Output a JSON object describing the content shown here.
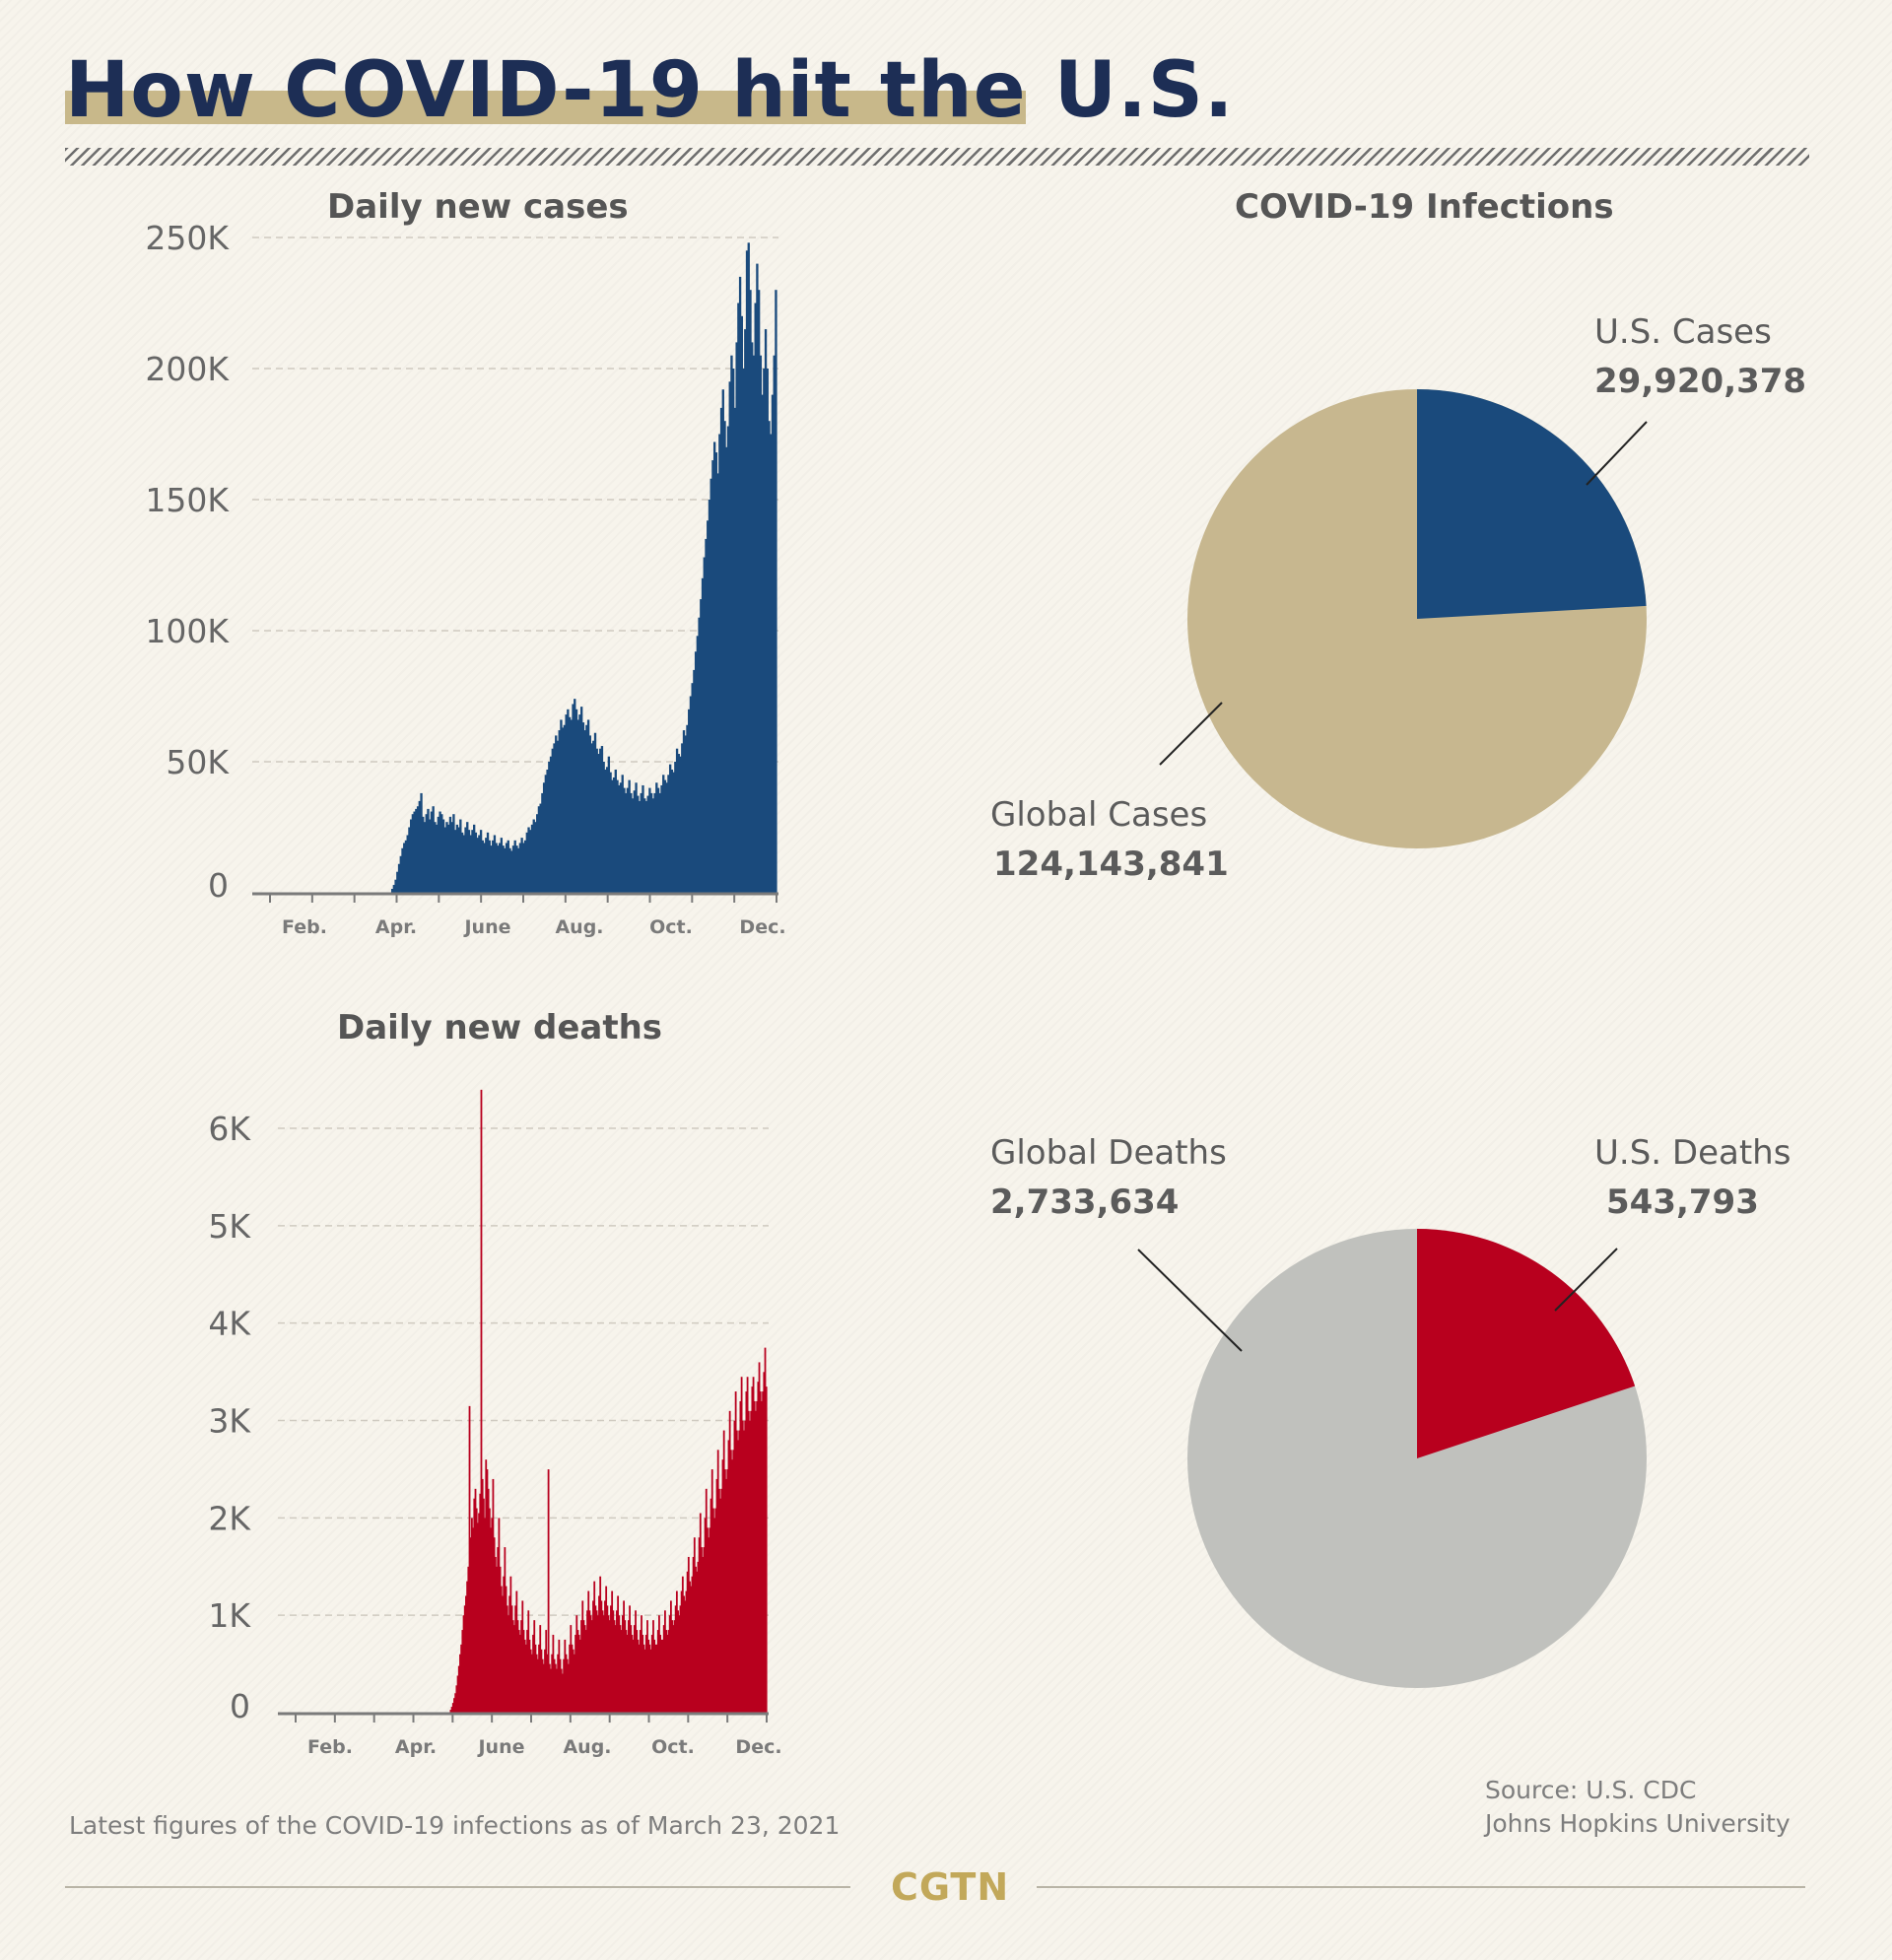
{
  "title": "How COVID-19 hit the U.S.",
  "colors": {
    "title": "#1d2e55",
    "title_band": "#c8b88a",
    "cases_bar": "#1a4a7c",
    "deaths_bar": "#b8001e",
    "global_cases": "#c7b78f",
    "us_cases": "#1a4a7c",
    "global_deaths": "#c0c1bd",
    "us_deaths": "#b8001e",
    "brand": "#c2a85a"
  },
  "chart_data": [
    {
      "type": "bar",
      "title": "Daily new cases",
      "ylim": [
        0,
        250000
      ],
      "y_ticks": [
        "250K",
        "200K",
        "150K",
        "100K",
        "50K",
        "0"
      ],
      "x_ticks": [
        "Feb.",
        "Apr.",
        "June",
        "Aug.",
        "Oct.",
        "Dec."
      ],
      "grid": true,
      "series": [
        {
          "values": [
            0,
            0,
            0,
            0,
            0,
            0,
            0,
            0,
            0,
            0,
            0,
            0,
            0,
            0,
            0,
            0,
            0,
            0,
            0,
            0,
            0,
            0,
            0,
            0,
            0,
            0,
            0,
            0,
            0,
            0,
            0,
            0,
            0,
            0,
            0,
            0,
            0,
            0,
            0,
            0,
            0,
            0,
            0,
            0,
            0,
            0,
            0,
            0,
            0,
            0,
            0,
            0,
            0,
            0,
            0,
            0,
            0,
            0,
            0,
            0,
            0,
            0,
            0,
            0,
            0,
            0,
            0,
            0,
            0,
            0,
            0,
            0,
            0,
            0,
            0,
            0,
            0,
            0,
            1500,
            3000,
            5000,
            8000,
            11000,
            14000,
            17000,
            19000,
            20000,
            22000,
            25000,
            28000,
            30000,
            31000,
            32000,
            33000,
            35000,
            38000,
            29000,
            27000,
            30000,
            32000,
            28000,
            31000,
            33000,
            27000,
            26000,
            29000,
            31000,
            30000,
            28000,
            25000,
            27000,
            26000,
            29000,
            27000,
            30000,
            24000,
            26000,
            25000,
            28000,
            23000,
            22000,
            25000,
            27000,
            24000,
            22000,
            24000,
            26000,
            23000,
            21000,
            22000,
            24000,
            20000,
            19000,
            21000,
            23000,
            20000,
            18000,
            20000,
            22000,
            19000,
            18000,
            19000,
            21000,
            18000,
            17000,
            19000,
            20000,
            17000,
            16000,
            18000,
            20000,
            18000,
            17000,
            19000,
            21000,
            19000,
            20000,
            23000,
            25000,
            24000,
            26000,
            28000,
            27000,
            30000,
            33000,
            34000,
            38000,
            42000,
            45000,
            47000,
            50000,
            52000,
            55000,
            57000,
            60000,
            58000,
            62000,
            66000,
            63000,
            64000,
            68000,
            70000,
            67000,
            66000,
            72000,
            74000,
            70000,
            66000,
            68000,
            71000,
            65000,
            62000,
            64000,
            66000,
            60000,
            57000,
            58000,
            61000,
            55000,
            53000,
            55000,
            56000,
            50000,
            47000,
            48000,
            52000,
            46000,
            43000,
            44000,
            47000,
            43000,
            41000,
            42000,
            45000,
            40000,
            38000,
            40000,
            43000,
            38000,
            36000,
            39000,
            42000,
            37000,
            35000,
            38000,
            41000,
            36000,
            35000,
            37000,
            40000,
            38000,
            36000,
            38000,
            42000,
            40000,
            38000,
            41000,
            45000,
            43000,
            42000,
            45000,
            49000,
            47000,
            46000,
            50000,
            55000,
            53000,
            52000,
            57000,
            62000,
            60000,
            64000,
            70000,
            75000,
            80000,
            85000,
            92000,
            98000,
            105000,
            112000,
            120000,
            128000,
            135000,
            142000,
            150000,
            158000,
            165000,
            172000,
            168000,
            160000,
            175000,
            185000,
            192000,
            180000,
            170000,
            178000,
            195000,
            205000,
            200000,
            185000,
            210000,
            225000,
            235000,
            220000,
            200000,
            215000,
            245000,
            248000,
            230000,
            210000,
            205000,
            225000,
            240000,
            230000,
            205000,
            190000,
            200000,
            215000,
            200000,
            180000,
            175000,
            190000,
            205000,
            230000
          ]
        }
      ]
    },
    {
      "type": "bar",
      "title": "Daily new deaths",
      "ylim": [
        0,
        6500
      ],
      "y_ticks": [
        "6K",
        "5K",
        "4K",
        "3K",
        "2K",
        "1K",
        "0"
      ],
      "x_ticks": [
        "Feb.",
        "Apr.",
        "June",
        "Aug.",
        "Oct.",
        "Dec."
      ],
      "grid": true,
      "series": [
        {
          "values": [
            0,
            0,
            0,
            0,
            0,
            0,
            0,
            0,
            0,
            0,
            0,
            0,
            0,
            0,
            0,
            0,
            0,
            0,
            0,
            0,
            0,
            0,
            0,
            0,
            0,
            0,
            0,
            0,
            0,
            0,
            0,
            0,
            0,
            0,
            0,
            0,
            0,
            0,
            0,
            0,
            0,
            0,
            0,
            0,
            0,
            0,
            0,
            0,
            0,
            0,
            0,
            0,
            0,
            0,
            0,
            0,
            0,
            0,
            0,
            0,
            0,
            0,
            0,
            0,
            0,
            0,
            0,
            0,
            0,
            0,
            0,
            0,
            0,
            0,
            0,
            0,
            0,
            0,
            0,
            0,
            0,
            0,
            0,
            0,
            0,
            0,
            0,
            0,
            0,
            0,
            0,
            0,
            0,
            0,
            0,
            0,
            0,
            0,
            0,
            0,
            0,
            0,
            0,
            0,
            0,
            0,
            0,
            0,
            0,
            0,
            0,
            0,
            0,
            0,
            0,
            0,
            0,
            0,
            0,
            0,
            0,
            0,
            0,
            0,
            0,
            0,
            0,
            0,
            0,
            0,
            0,
            0,
            0,
            0,
            0,
            0,
            0,
            0,
            0,
            0,
            0,
            0,
            0,
            0,
            0,
            0,
            30,
            60,
            100,
            150,
            200,
            280,
            380,
            480,
            600,
            700,
            850,
            1000,
            1100,
            1200,
            1350,
            1500,
            3150,
            1800,
            2000,
            1900,
            2200,
            2300,
            2100,
            1950,
            2050,
            2250,
            6400,
            2400,
            2200,
            2000,
            2600,
            2500,
            2300,
            2100,
            1900,
            2000,
            2400,
            1800,
            1600,
            1500,
            1700,
            2000,
            1500,
            1300,
            1200,
            1400,
            1700,
            1300,
            1100,
            1000,
            1200,
            1400,
            1100,
            950,
            900,
            1100,
            1250,
            950,
            850,
            800,
            950,
            1150,
            850,
            750,
            700,
            850,
            1050,
            750,
            650,
            600,
            800,
            950,
            700,
            600,
            550,
            700,
            900,
            650,
            550,
            500,
            650,
            850,
            600,
            2500,
            500,
            450,
            600,
            800,
            550,
            500,
            450,
            600,
            750,
            550,
            450,
            400,
            550,
            750,
            600,
            550,
            500,
            700,
            900,
            700,
            650,
            600,
            800,
            1000,
            850,
            800,
            750,
            950,
            1150,
            950,
            900,
            850,
            1050,
            1250,
            1050,
            1000,
            950,
            1150,
            1350,
            1100,
            1050,
            1000,
            1200,
            1400,
            1150,
            1050,
            1000,
            1150,
            1300,
            1100,
            1000,
            950,
            1100,
            1250,
            1050,
            950,
            900,
            1050,
            1200,
            1000,
            900,
            850,
            1000,
            1150,
            950,
            850,
            800,
            950,
            1100,
            900,
            800,
            750,
            900,
            1050,
            850,
            750,
            700,
            850,
            1000,
            800,
            700,
            650,
            800,
            950,
            750,
            700,
            650,
            800,
            950,
            750,
            700,
            700,
            850,
            1000,
            800,
            750,
            750,
            900,
            1050,
            850,
            800,
            850,
            1000,
            1150,
            950,
            900,
            950,
            1100,
            1250,
            1050,
            1000,
            1100,
            1250,
            1400,
            1200,
            1150,
            1250,
            1450,
            1600,
            1350,
            1300,
            1400,
            1600,
            1800,
            1500,
            1450,
            1550,
            1800,
            2050,
            1700,
            1600,
            1700,
            2000,
            2300,
            1900,
            1800,
            1900,
            2200,
            2500,
            2100,
            2000,
            2100,
            2400,
            2700,
            2300,
            2200,
            2300,
            2600,
            2900,
            2500,
            2400,
            2500,
            2800,
            3100,
            2700,
            2600,
            2700,
            3000,
            3300,
            2900,
            2800,
            2900,
            3200,
            3450,
            3000,
            2900,
            3000,
            3300,
            3450,
            3100,
            3000,
            3100,
            3350,
            3450,
            3200,
            3100,
            3200,
            3400,
            3600,
            3300,
            3200,
            3300,
            3500,
            3750,
            3350
          ]
        }
      ]
    },
    {
      "type": "pie",
      "title": "COVID-19 Infections",
      "series": [
        {
          "name": "U.S. Cases",
          "value": 29920378,
          "label": "29,920,378"
        },
        {
          "name": "Global Cases",
          "value": 124143841,
          "label": "124,143,841"
        }
      ]
    },
    {
      "type": "pie",
      "series": [
        {
          "name": "U.S. Deaths",
          "value": 543793,
          "label": "543,793"
        },
        {
          "name": "Global Deaths",
          "value": 2733634,
          "label": "2,733,634"
        }
      ]
    }
  ],
  "footnote": "Latest figures of the COVID-19 infections as of March 23, 2021",
  "source": [
    "Source: U.S. CDC",
    "Johns Hopkins University"
  ],
  "brand": "CGTN"
}
